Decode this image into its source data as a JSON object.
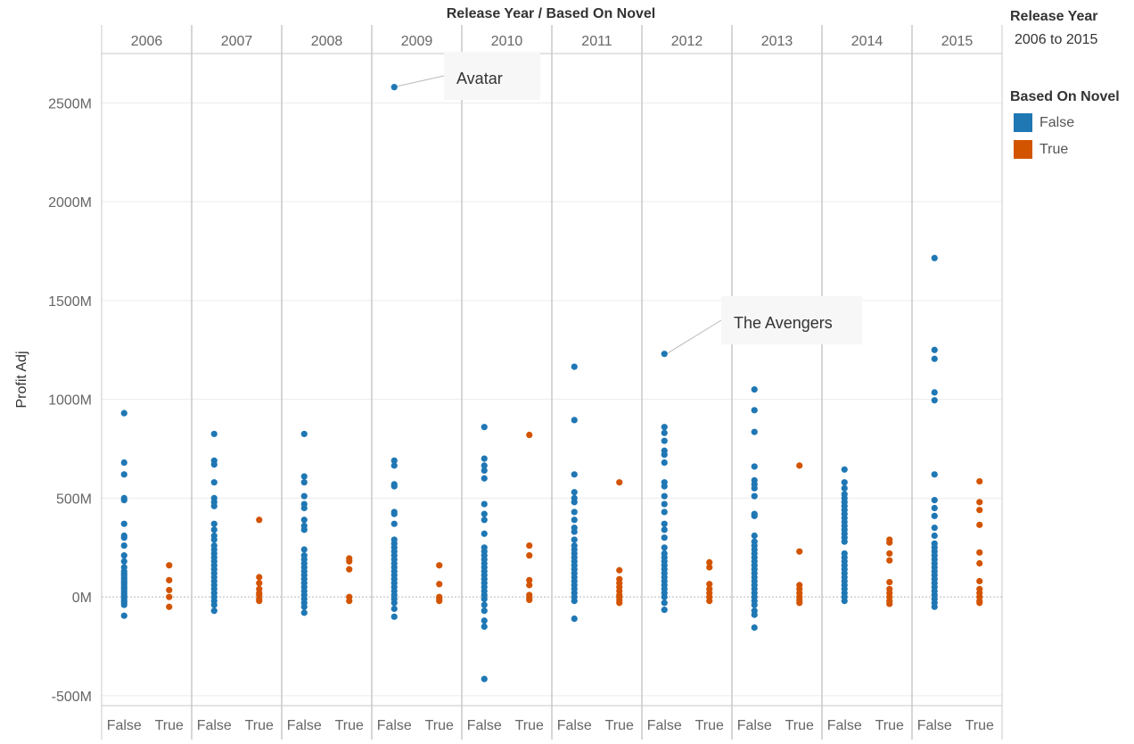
{
  "chart_data": {
    "type": "scatter",
    "title": "Release Year  /  Based On Novel",
    "ylabel": "Profit Adj",
    "ylim": [
      -550,
      2750
    ],
    "yticks": [
      -500,
      0,
      500,
      1000,
      1500,
      2000,
      2500
    ],
    "ytick_labels": [
      "-500M",
      "0M",
      "500M",
      "1000M",
      "1500M",
      "2000M",
      "2500M"
    ],
    "years": [
      "2006",
      "2007",
      "2008",
      "2009",
      "2010",
      "2011",
      "2012",
      "2013",
      "2014",
      "2015"
    ],
    "subcategories": [
      "False",
      "True"
    ],
    "grid": true,
    "legend": {
      "position": "right",
      "filter_title": "Release Year",
      "filter_value": "2006 to 2015",
      "color_title": "Based On Novel",
      "items": [
        {
          "label": "False",
          "color": "#1f77b4"
        },
        {
          "label": "True",
          "color": "#d35400"
        }
      ]
    },
    "series": [
      {
        "name": "False",
        "color": "#1f77b4",
        "values_by_year": [
          [
            930,
            680,
            620,
            500,
            490,
            370,
            310,
            300,
            260,
            210,
            180,
            150,
            130,
            120,
            110,
            100,
            90,
            80,
            70,
            60,
            50,
            40,
            30,
            20,
            10,
            0,
            -10,
            -20,
            -30,
            -40,
            -95
          ],
          [
            825,
            690,
            670,
            580,
            500,
            480,
            460,
            370,
            340,
            310,
            290,
            260,
            240,
            220,
            200,
            180,
            160,
            140,
            120,
            100,
            80,
            60,
            40,
            20,
            0,
            -20,
            -40,
            -70
          ],
          [
            825,
            610,
            580,
            510,
            470,
            450,
            390,
            360,
            340,
            240,
            210,
            190,
            170,
            150,
            130,
            110,
            90,
            70,
            50,
            30,
            10,
            -10,
            -30,
            -50,
            -80
          ],
          [
            2580,
            690,
            665,
            570,
            560,
            430,
            420,
            370,
            290,
            270,
            250,
            230,
            210,
            190,
            170,
            150,
            130,
            110,
            90,
            70,
            50,
            30,
            10,
            -10,
            -30,
            -60,
            -100
          ],
          [
            860,
            700,
            665,
            640,
            600,
            470,
            420,
            390,
            320,
            250,
            230,
            210,
            190,
            170,
            150,
            130,
            110,
            90,
            70,
            50,
            30,
            10,
            -10,
            -40,
            -70,
            -120,
            -150,
            -415
          ],
          [
            1165,
            895,
            620,
            530,
            500,
            480,
            430,
            390,
            350,
            330,
            290,
            260,
            240,
            220,
            200,
            180,
            160,
            140,
            120,
            100,
            80,
            60,
            40,
            20,
            0,
            -20,
            -110
          ],
          [
            1230,
            860,
            830,
            790,
            740,
            720,
            680,
            580,
            560,
            510,
            470,
            430,
            370,
            340,
            300,
            250,
            220,
            200,
            180,
            160,
            140,
            120,
            100,
            80,
            60,
            40,
            20,
            0,
            -30,
            -65
          ],
          [
            1050,
            945,
            835,
            660,
            590,
            570,
            550,
            510,
            420,
            410,
            310,
            280,
            260,
            240,
            220,
            200,
            180,
            160,
            140,
            120,
            100,
            80,
            60,
            40,
            20,
            0,
            -20,
            -40,
            -70,
            -90,
            -155
          ],
          [
            645,
            580,
            550,
            520,
            500,
            480,
            460,
            440,
            420,
            400,
            380,
            360,
            340,
            320,
            300,
            280,
            220,
            200,
            180,
            160,
            140,
            120,
            100,
            80,
            60,
            40,
            20,
            0,
            -20
          ],
          [
            1715,
            1250,
            1205,
            1035,
            995,
            620,
            490,
            450,
            410,
            350,
            310,
            270,
            250,
            230,
            210,
            190,
            170,
            150,
            130,
            110,
            90,
            70,
            50,
            30,
            10,
            -10,
            -30,
            -50
          ]
        ]
      },
      {
        "name": "True",
        "color": "#d35400",
        "values_by_year": [
          [
            160,
            85,
            35,
            0,
            -50
          ],
          [
            390,
            100,
            70,
            40,
            20,
            10,
            -10,
            -20
          ],
          [
            195,
            180,
            140,
            0,
            -20
          ],
          [
            160,
            65,
            0,
            -10,
            -20
          ],
          [
            820,
            260,
            210,
            85,
            60,
            10,
            -5,
            -15
          ],
          [
            580,
            135,
            90,
            70,
            50,
            30,
            10,
            0,
            -15,
            -30
          ],
          [
            175,
            150,
            65,
            40,
            20,
            0,
            -20
          ],
          [
            665,
            230,
            60,
            40,
            20,
            0,
            -15,
            -30
          ],
          [
            290,
            275,
            220,
            185,
            75,
            40,
            20,
            0,
            -20,
            -35
          ],
          [
            585,
            480,
            440,
            365,
            225,
            170,
            80,
            40,
            20,
            0,
            -20,
            -30
          ]
        ]
      }
    ],
    "annotations": [
      {
        "text": "Avatar",
        "year": "2009",
        "series": "False",
        "value": 2580
      },
      {
        "text": "The Avengers",
        "year": "2012",
        "series": "False",
        "value": 1230
      }
    ]
  }
}
